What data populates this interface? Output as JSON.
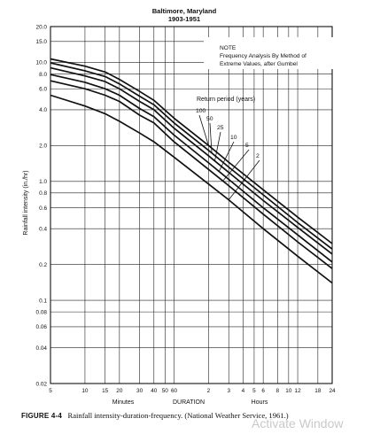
{
  "chart_data": {
    "type": "line",
    "title": "Baltimore, Maryland",
    "subtitle": "1903-1951",
    "xlabel": "DURATION",
    "ylabel": "Rainfall intensity (in./hr)",
    "xlim_minutes": [
      5,
      1440
    ],
    "ylim": [
      0.02,
      20
    ],
    "x_scale": "log",
    "y_scale": "log",
    "grid": true,
    "y_tick_labels": [
      "20.0",
      "15.0",
      "10.0",
      "8.0",
      "6.0",
      "4.0",
      "2.0",
      "1.0",
      "0.8",
      "0.6",
      "0.4",
      "0.2",
      "0.1",
      "0.08",
      "0.06",
      "0.04",
      "0.02"
    ],
    "x_tick_labels_minutes": [
      "5",
      "10",
      "15",
      "20",
      "30",
      "40",
      "50",
      "60"
    ],
    "x_tick_labels_hours": [
      "2",
      "3",
      "4",
      "5",
      "6",
      "8",
      "10",
      "12",
      "18",
      "24"
    ],
    "x_unit_minutes": "Minutes",
    "x_unit_hours": "Hours",
    "note": {
      "title": "NOTE",
      "lines": [
        "Frequency Analysis By Method of",
        "Extreme Values, after Gumbel"
      ]
    },
    "legend_title": "Return period (years)",
    "series": [
      {
        "name": "100",
        "x_minutes": [
          5,
          10,
          15,
          20,
          30,
          40,
          60,
          120,
          180,
          360,
          720,
          1440
        ],
        "values": [
          10.7,
          9.3,
          8.3,
          7.2,
          5.7,
          4.8,
          3.4,
          2.0,
          1.45,
          0.85,
          0.5,
          0.3
        ]
      },
      {
        "name": "50",
        "x_minutes": [
          5,
          10,
          15,
          20,
          30,
          40,
          60,
          120,
          180,
          360,
          720,
          1440
        ],
        "values": [
          9.9,
          8.5,
          7.6,
          6.6,
          5.2,
          4.4,
          3.1,
          1.82,
          1.32,
          0.77,
          0.45,
          0.27
        ]
      },
      {
        "name": "25",
        "x_minutes": [
          5,
          10,
          15,
          20,
          30,
          40,
          60,
          120,
          180,
          360,
          720,
          1440
        ],
        "values": [
          9.0,
          7.7,
          6.9,
          6.0,
          4.7,
          4.0,
          2.8,
          1.64,
          1.19,
          0.69,
          0.41,
          0.245
        ]
      },
      {
        "name": "10",
        "x_minutes": [
          5,
          10,
          15,
          20,
          30,
          40,
          60,
          120,
          180,
          360,
          720,
          1440
        ],
        "values": [
          7.9,
          6.8,
          6.0,
          5.3,
          4.1,
          3.5,
          2.45,
          1.43,
          1.04,
          0.6,
          0.355,
          0.21
        ]
      },
      {
        "name": "5",
        "x_minutes": [
          5,
          10,
          15,
          20,
          30,
          40,
          60,
          120,
          180,
          360,
          720,
          1440
        ],
        "values": [
          7.0,
          6.0,
          5.3,
          4.7,
          3.6,
          3.1,
          2.15,
          1.26,
          0.92,
          0.53,
          0.31,
          0.185
        ]
      },
      {
        "name": "2",
        "x_minutes": [
          5,
          10,
          15,
          20,
          30,
          40,
          60,
          120,
          180,
          360,
          720,
          1440
        ],
        "values": [
          5.3,
          4.3,
          3.7,
          3.2,
          2.55,
          2.15,
          1.6,
          0.95,
          0.7,
          0.4,
          0.235,
          0.14
        ]
      }
    ]
  },
  "caption": {
    "label": "FIGURE 4-4",
    "text": "Rainfall intensity-duration-frequency. (National Weather Service, 1961.)"
  },
  "watermark": "Activate Window"
}
